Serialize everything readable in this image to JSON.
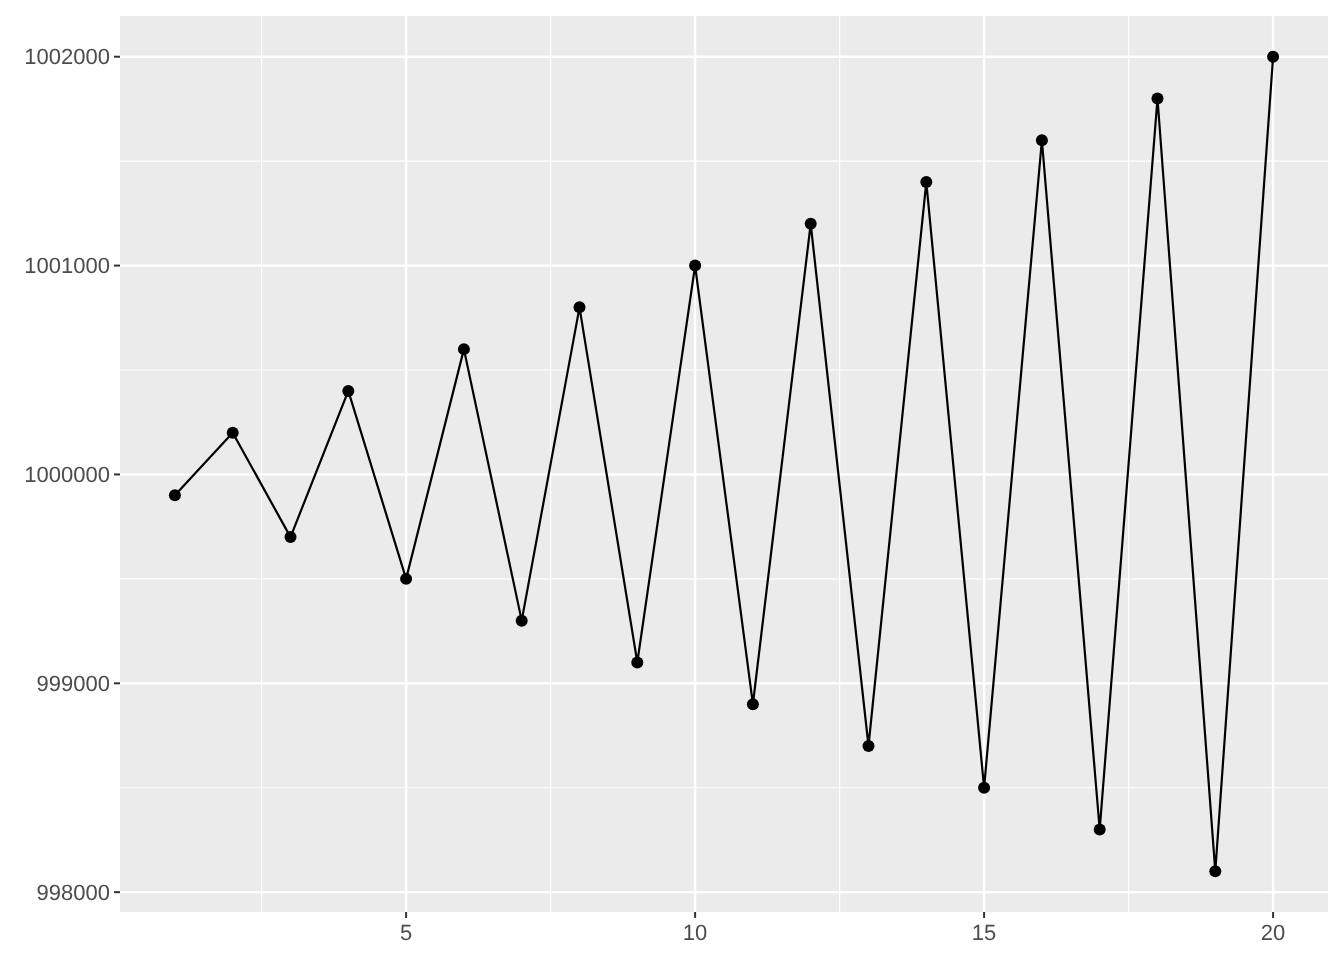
{
  "chart_data": {
    "type": "line",
    "x": [
      1,
      2,
      3,
      4,
      5,
      6,
      7,
      8,
      9,
      10,
      11,
      12,
      13,
      14,
      15,
      16,
      17,
      18,
      19,
      20
    ],
    "series": [
      {
        "color": "#000000",
        "values": [
          999900,
          1000200,
          999700,
          1000400,
          999500,
          1000600,
          999300,
          1000800,
          999100,
          1001000,
          998900,
          1001200,
          998700,
          1001400,
          998500,
          1001600,
          998300,
          1001800,
          998100,
          1002000
        ]
      }
    ],
    "xlim": [
      0.05,
      20.95
    ],
    "ylim": [
      997905,
      1002195
    ],
    "xticks": [
      5,
      10,
      15,
      20
    ],
    "yticks": [
      998000,
      999000,
      1000000,
      1001000,
      1002000
    ],
    "grid": true,
    "marker": "circle",
    "line_style": "solid"
  }
}
